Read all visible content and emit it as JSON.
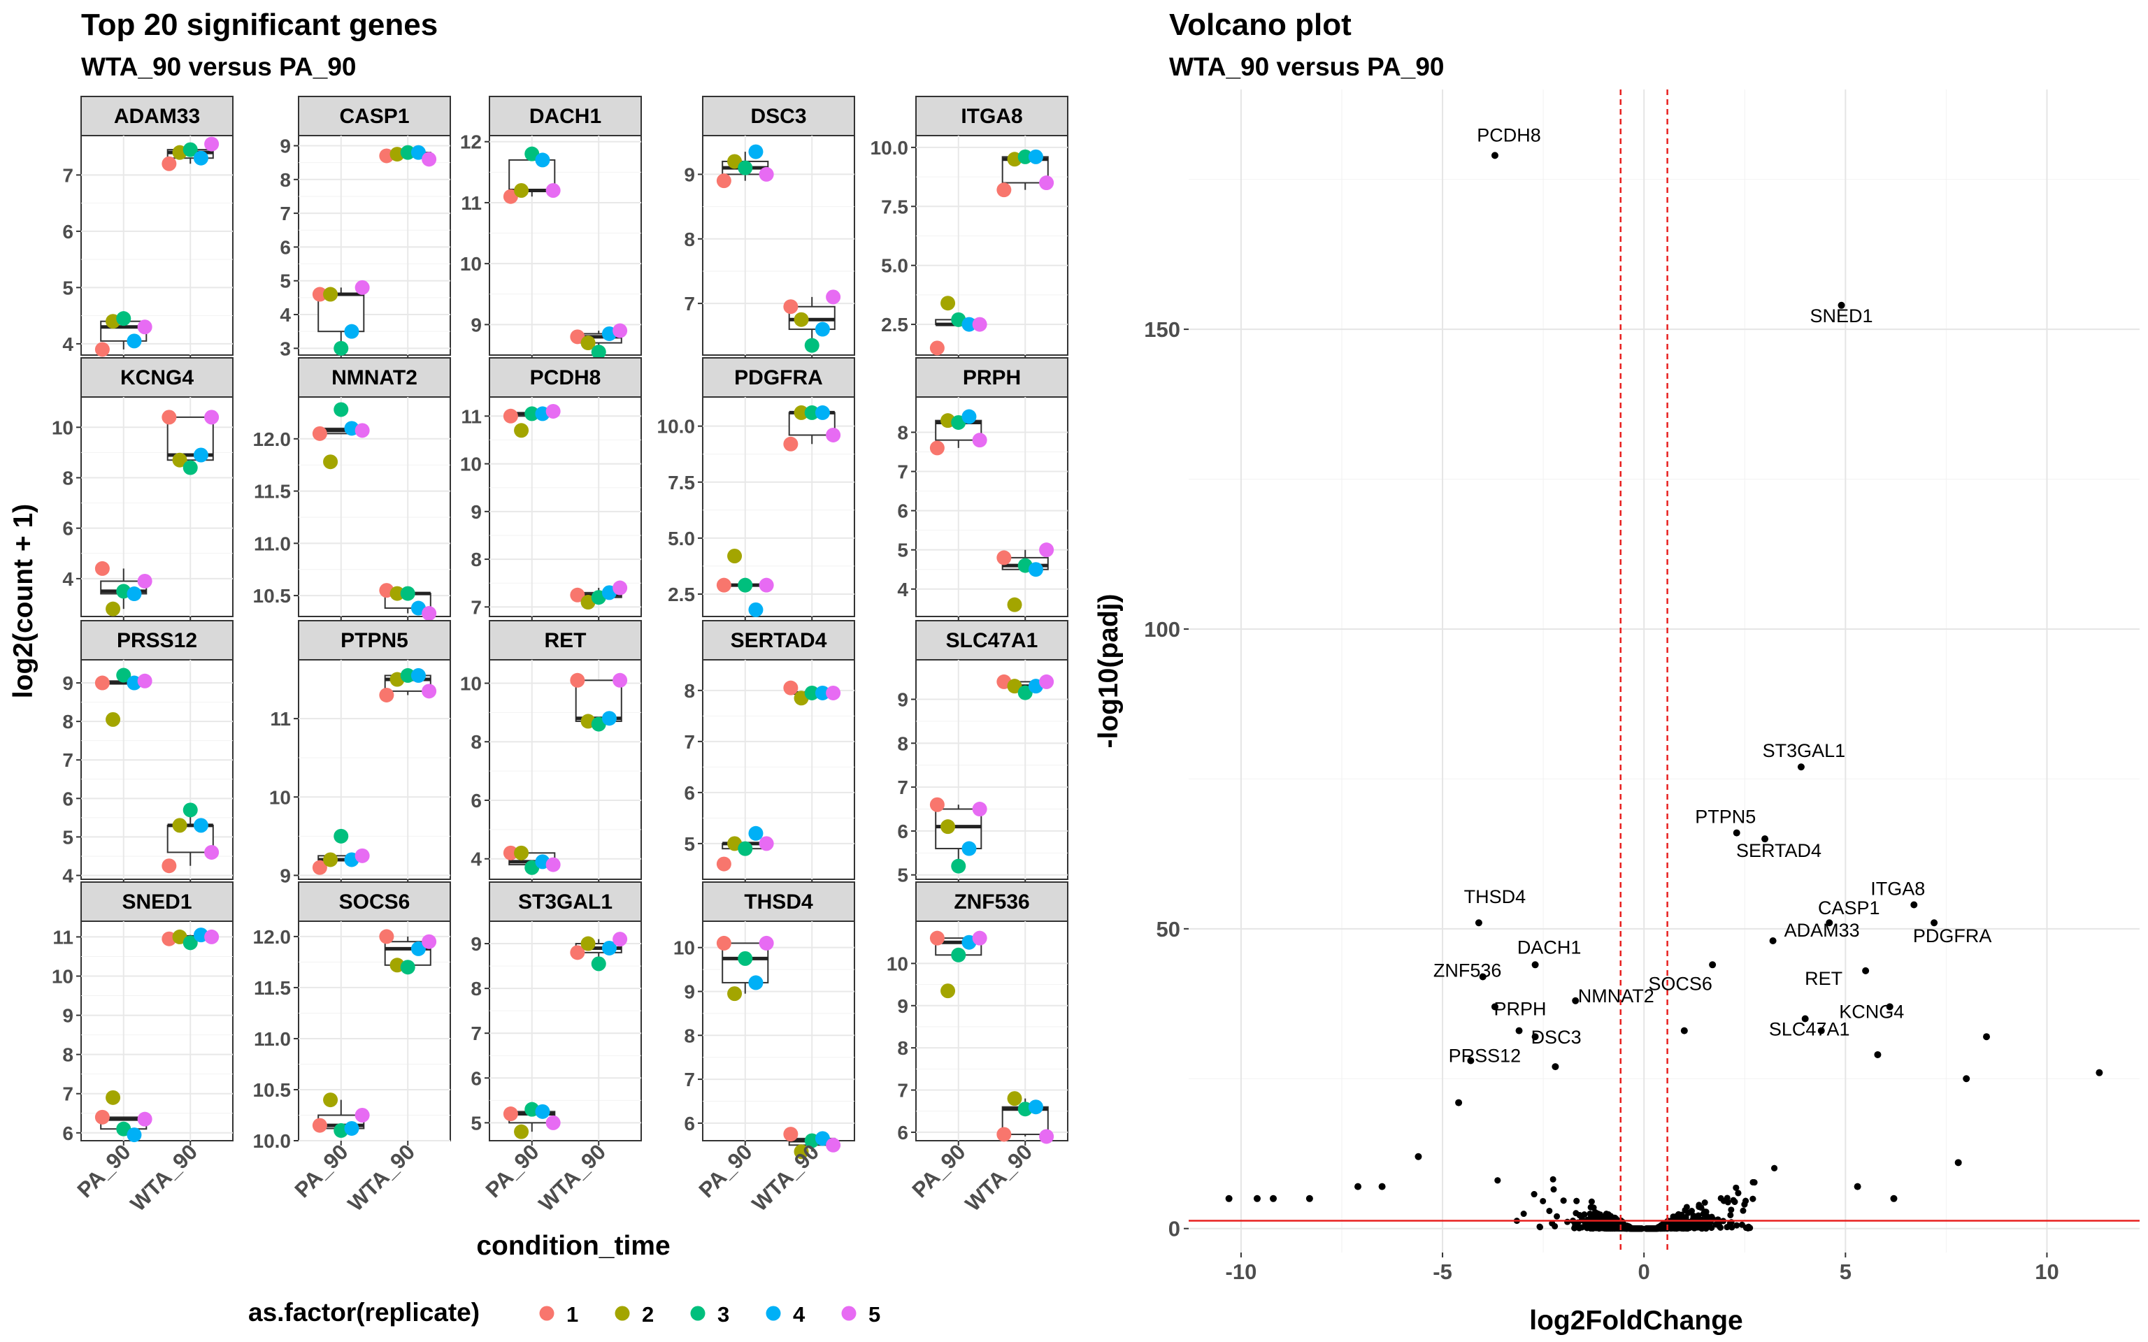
{
  "left_panel": {
    "title": "Top 20 significant genes",
    "subtitle": "WTA_90 versus PA_90",
    "xlabel": "condition_time",
    "ylabel": "log2(count + 1)",
    "x_categories": [
      "PA_90",
      "WTA_90"
    ]
  },
  "legend": {
    "title": "as.factor(replicate)",
    "items": [
      {
        "label": "1",
        "color": "#F8766D"
      },
      {
        "label": "2",
        "color": "#A3A500"
      },
      {
        "label": "3",
        "color": "#00BF7D"
      },
      {
        "label": "4",
        "color": "#00B0F6"
      },
      {
        "label": "5",
        "color": "#E76BF3"
      }
    ]
  },
  "right_panel": {
    "title": "Volcano plot",
    "subtitle": "WTA_90 versus PA_90"
  },
  "chart_data": [
    {
      "type": "box-strip",
      "facet": "condition_time ~ gene",
      "categories": [
        "PA_90",
        "WTA_90"
      ],
      "replicates": [
        "1",
        "2",
        "3",
        "4",
        "5"
      ],
      "panels": [
        {
          "gene": "ADAM33",
          "ylim": [
            3.8,
            7.7
          ],
          "yticks": [
            4,
            5,
            6,
            7
          ],
          "values": {
            "PA_90": [
              3.9,
              4.4,
              4.45,
              4.05,
              4.3
            ],
            "WTA_90": [
              7.2,
              7.4,
              7.45,
              7.3,
              7.55
            ]
          }
        },
        {
          "gene": "CASP1",
          "ylim": [
            2.8,
            9.3
          ],
          "yticks": [
            3,
            4,
            5,
            6,
            7,
            8,
            9
          ],
          "values": {
            "PA_90": [
              4.6,
              4.6,
              3.0,
              3.5,
              4.8
            ],
            "WTA_90": [
              8.7,
              8.75,
              8.8,
              8.8,
              8.6
            ]
          }
        },
        {
          "gene": "DACH1",
          "ylim": [
            8.5,
            12.1
          ],
          "yticks": [
            9,
            10,
            11,
            12
          ],
          "values": {
            "PA_90": [
              11.1,
              11.2,
              11.8,
              11.7,
              11.2
            ],
            "WTA_90": [
              8.8,
              8.7,
              8.55,
              8.85,
              8.9
            ]
          }
        },
        {
          "gene": "DSC3",
          "ylim": [
            6.2,
            9.6
          ],
          "yticks": [
            7,
            8,
            9
          ],
          "values": {
            "PA_90": [
              8.9,
              9.2,
              9.1,
              9.35,
              9.0
            ],
            "WTA_90": [
              6.95,
              6.75,
              6.35,
              6.6,
              7.1
            ]
          }
        },
        {
          "gene": "ITGA8",
          "ylim": [
            1.2,
            10.5
          ],
          "yticks": [
            2.5,
            5.0,
            7.5,
            10.0
          ],
          "values": {
            "PA_90": [
              1.5,
              3.4,
              2.7,
              2.5,
              2.5
            ],
            "WTA_90": [
              8.2,
              9.5,
              9.6,
              9.6,
              8.5
            ]
          }
        },
        {
          "gene": "KCNG4",
          "ylim": [
            2.5,
            11.2
          ],
          "yticks": [
            4,
            6,
            8,
            10
          ],
          "values": {
            "PA_90": [
              4.4,
              2.8,
              3.5,
              3.4,
              3.9
            ],
            "WTA_90": [
              10.4,
              8.7,
              8.4,
              8.9,
              10.4
            ]
          }
        },
        {
          "gene": "NMNAT2",
          "ylim": [
            10.3,
            12.4
          ],
          "yticks": [
            10.5,
            11.0,
            11.5,
            12.0
          ],
          "values": {
            "PA_90": [
              12.05,
              11.78,
              12.28,
              12.1,
              12.08
            ],
            "WTA_90": [
              10.55,
              10.52,
              10.52,
              10.38,
              10.33
            ]
          }
        },
        {
          "gene": "PCDH8",
          "ylim": [
            6.8,
            11.4
          ],
          "yticks": [
            7,
            8,
            9,
            10,
            11
          ],
          "values": {
            "PA_90": [
              11.0,
              10.7,
              11.05,
              11.05,
              11.1
            ],
            "WTA_90": [
              7.25,
              7.1,
              7.2,
              7.3,
              7.4
            ]
          }
        },
        {
          "gene": "PDGFRA",
          "ylim": [
            1.5,
            11.3
          ],
          "yticks": [
            2.5,
            5.0,
            7.5,
            10.0
          ],
          "values": {
            "PA_90": [
              2.9,
              4.2,
              2.9,
              1.8,
              2.9
            ],
            "WTA_90": [
              9.2,
              10.6,
              10.6,
              10.6,
              9.6
            ]
          }
        },
        {
          "gene": "PRPH",
          "ylim": [
            3.3,
            8.9
          ],
          "yticks": [
            4,
            5,
            6,
            7,
            8
          ],
          "values": {
            "PA_90": [
              7.6,
              8.3,
              8.25,
              8.4,
              7.8
            ],
            "WTA_90": [
              4.8,
              3.6,
              4.6,
              4.5,
              5.0
            ]
          }
        },
        {
          "gene": "PRSS12",
          "ylim": [
            3.9,
            9.6
          ],
          "yticks": [
            4,
            5,
            6,
            7,
            8,
            9
          ],
          "values": {
            "PA_90": [
              9.0,
              8.05,
              9.2,
              9.0,
              9.05
            ],
            "WTA_90": [
              4.25,
              5.3,
              5.7,
              5.3,
              4.6
            ]
          }
        },
        {
          "gene": "PTPN5",
          "ylim": [
            8.95,
            11.75
          ],
          "yticks": [
            9,
            10,
            11
          ],
          "values": {
            "PA_90": [
              9.1,
              9.2,
              9.5,
              9.2,
              9.25
            ],
            "WTA_90": [
              11.3,
              11.5,
              11.55,
              11.55,
              11.35
            ]
          }
        },
        {
          "gene": "RET",
          "ylim": [
            3.3,
            10.8
          ],
          "yticks": [
            4,
            6,
            8,
            10
          ],
          "values": {
            "PA_90": [
              4.2,
              4.2,
              3.7,
              3.9,
              3.8
            ],
            "WTA_90": [
              10.1,
              8.7,
              8.6,
              8.8,
              10.1
            ]
          }
        },
        {
          "gene": "SERTAD4",
          "ylim": [
            4.3,
            8.6
          ],
          "yticks": [
            5,
            6,
            7,
            8
          ],
          "values": {
            "PA_90": [
              4.6,
              5.0,
              4.9,
              5.2,
              5.0
            ],
            "WTA_90": [
              8.05,
              7.85,
              7.95,
              7.95,
              7.95
            ]
          }
        },
        {
          "gene": "SLC47A1",
          "ylim": [
            4.9,
            9.9
          ],
          "yticks": [
            5,
            6,
            7,
            8,
            9
          ],
          "values": {
            "PA_90": [
              6.6,
              6.1,
              5.2,
              5.6,
              6.5
            ],
            "WTA_90": [
              9.4,
              9.3,
              9.15,
              9.3,
              9.4
            ]
          }
        },
        {
          "gene": "SNED1",
          "ylim": [
            5.8,
            11.4
          ],
          "yticks": [
            6,
            7,
            8,
            9,
            10,
            11
          ],
          "values": {
            "PA_90": [
              6.4,
              6.9,
              6.1,
              5.95,
              6.35
            ],
            "WTA_90": [
              10.95,
              11.0,
              10.85,
              11.05,
              11.0
            ]
          }
        },
        {
          "gene": "SOCS6",
          "ylim": [
            10.0,
            12.15
          ],
          "yticks": [
            10.0,
            10.5,
            11.0,
            11.5,
            12.0
          ],
          "values": {
            "PA_90": [
              10.15,
              10.4,
              10.1,
              10.12,
              10.25
            ],
            "WTA_90": [
              12.0,
              11.72,
              11.7,
              11.88,
              11.95
            ]
          }
        },
        {
          "gene": "ST3GAL1",
          "ylim": [
            4.6,
            9.5
          ],
          "yticks": [
            5,
            6,
            7,
            8,
            9
          ],
          "values": {
            "PA_90": [
              5.2,
              4.8,
              5.3,
              5.25,
              5.0
            ],
            "WTA_90": [
              8.8,
              9.0,
              8.55,
              8.9,
              9.1
            ]
          }
        },
        {
          "gene": "THSD4",
          "ylim": [
            5.6,
            10.6
          ],
          "yticks": [
            6,
            7,
            8,
            9,
            10
          ],
          "values": {
            "PA_90": [
              10.1,
              8.95,
              9.75,
              9.2,
              10.1
            ],
            "WTA_90": [
              5.75,
              5.35,
              5.6,
              5.65,
              5.5
            ]
          }
        },
        {
          "gene": "ZNF536",
          "ylim": [
            5.8,
            11.0
          ],
          "yticks": [
            6,
            7,
            8,
            9,
            10
          ],
          "values": {
            "PA_90": [
              10.6,
              9.35,
              10.2,
              10.5,
              10.6
            ],
            "WTA_90": [
              5.95,
              6.8,
              6.55,
              6.6,
              5.9
            ]
          }
        }
      ]
    },
    {
      "type": "scatter",
      "title": "Volcano plot",
      "subtitle": "WTA_90 versus PA_90",
      "xlabel": "log2FoldChange",
      "ylabel": "-log10(padj)",
      "xlim": [
        -11.3,
        12.3
      ],
      "ylim": [
        -4,
        190
      ],
      "xticks": [
        -10,
        -5,
        0,
        5,
        10
      ],
      "yticks": [
        0,
        50,
        100,
        150
      ],
      "vlines": [
        -0.58,
        0.58
      ],
      "hline": 1.3,
      "labeled_points": [
        {
          "gene": "PCDH8",
          "x": -3.7,
          "y": 179
        },
        {
          "gene": "SNED1",
          "x": 4.9,
          "y": 154
        },
        {
          "gene": "ST3GAL1",
          "x": 3.9,
          "y": 77
        },
        {
          "gene": "PTPN5",
          "x": 2.3,
          "y": 66
        },
        {
          "gene": "SERTAD4",
          "x": 3.0,
          "y": 65
        },
        {
          "gene": "ITGA8",
          "x": 6.7,
          "y": 54
        },
        {
          "gene": "CASP1",
          "x": 4.6,
          "y": 51
        },
        {
          "gene": "PDGFRA",
          "x": 7.2,
          "y": 51
        },
        {
          "gene": "THSD4",
          "x": -4.1,
          "y": 51
        },
        {
          "gene": "DACH1",
          "x": -2.7,
          "y": 44
        },
        {
          "gene": "ADAM33",
          "x": 3.2,
          "y": 48
        },
        {
          "gene": "ZNF536",
          "x": -4.0,
          "y": 42
        },
        {
          "gene": "SOCS6",
          "x": 1.7,
          "y": 44
        },
        {
          "gene": "NMNAT2",
          "x": -1.7,
          "y": 38
        },
        {
          "gene": "PRPH",
          "x": -3.7,
          "y": 37
        },
        {
          "gene": "RET",
          "x": 5.5,
          "y": 43
        },
        {
          "gene": "SLC47A1",
          "x": 4.0,
          "y": 35
        },
        {
          "gene": "KCNG4",
          "x": 6.1,
          "y": 37
        },
        {
          "gene": "DSC3",
          "x": -2.7,
          "y": 32
        },
        {
          "gene": "PRSS12",
          "x": -4.3,
          "y": 28
        }
      ],
      "other_points": [
        {
          "x": 11.3,
          "y": 26
        },
        {
          "x": 8.5,
          "y": 32
        },
        {
          "x": 8.0,
          "y": 25
        },
        {
          "x": 7.8,
          "y": 11
        },
        {
          "x": 5.8,
          "y": 29
        },
        {
          "x": 5.3,
          "y": 7
        },
        {
          "x": 6.2,
          "y": 5
        },
        {
          "x": 4.4,
          "y": 33
        },
        {
          "x": -10.3,
          "y": 5
        },
        {
          "x": -9.6,
          "y": 5
        },
        {
          "x": -9.2,
          "y": 5
        },
        {
          "x": -8.3,
          "y": 5
        },
        {
          "x": -7.1,
          "y": 7
        },
        {
          "x": -6.5,
          "y": 7
        },
        {
          "x": -5.6,
          "y": 12
        },
        {
          "x": -4.6,
          "y": 21
        },
        {
          "x": -3.1,
          "y": 33
        },
        {
          "x": -2.2,
          "y": 27
        },
        {
          "x": 1.0,
          "y": 33
        }
      ],
      "cloud": {
        "x_range": [
          -6.5,
          6.5
        ],
        "y_range": [
          0,
          22
        ],
        "approx_points": 2200
      }
    }
  ]
}
